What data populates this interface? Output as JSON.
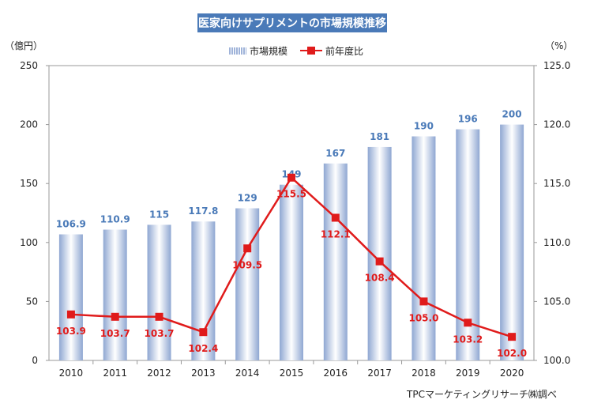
{
  "title": "医家向けサプリメントの市場規模推移",
  "source_note": "TPCマーケティングリサーチ㈱調べ",
  "colors": {
    "title_bg": "#4a7ab8",
    "bar_edge": "#8fa7d2",
    "bar_center": "#ffffff",
    "bar_label": "#4a7ab8",
    "line": "#e01b1b"
  },
  "chart_data": {
    "type": "bar",
    "title": "医家向けサプリメントの市場規模推移",
    "categories": [
      "2010",
      "2011",
      "2012",
      "2013",
      "2014",
      "2015",
      "2016",
      "2017",
      "2018",
      "2019",
      "2020"
    ],
    "series": [
      {
        "name": "市場規模",
        "type": "bar",
        "axis": "left",
        "values": [
          106.9,
          110.9,
          115,
          117.8,
          129,
          149,
          167,
          181,
          190,
          196,
          200
        ],
        "labels": [
          "106.9",
          "110.9",
          "115",
          "117.8",
          "129",
          "149",
          "167",
          "181",
          "190",
          "196",
          "200"
        ]
      },
      {
        "name": "前年度比",
        "type": "line",
        "axis": "right",
        "values": [
          103.9,
          103.7,
          103.7,
          102.4,
          109.5,
          115.5,
          112.1,
          108.4,
          105.0,
          103.2,
          102.0
        ],
        "labels": [
          "103.9",
          "103.7",
          "103.7",
          "102.4",
          "109.5",
          "115.5",
          "112.1",
          "108.4",
          "105.0",
          "103.2",
          "102.0"
        ]
      }
    ],
    "y_left": {
      "label": "（億円）",
      "range": [
        0,
        250
      ],
      "ticks": [
        "0",
        "50",
        "100",
        "150",
        "200",
        "250"
      ]
    },
    "y_right": {
      "label": "（%）",
      "range": [
        100,
        125
      ],
      "ticks": [
        "100.0",
        "105.0",
        "110.0",
        "115.0",
        "120.0",
        "125.0"
      ]
    },
    "grid": false,
    "legend": "top-center"
  }
}
